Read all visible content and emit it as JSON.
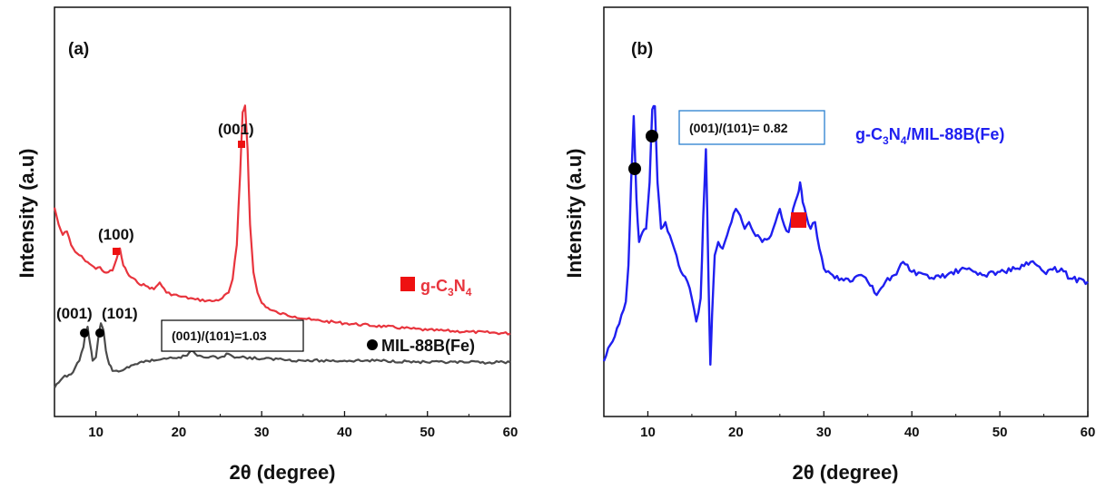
{
  "colors": {
    "gcn": "#e8343d",
    "mil": "#4a4a4a",
    "composite": "#1f1ff0",
    "square_marker": "#ee1111",
    "circle_marker": "#000000",
    "box_a_border": "#000000",
    "box_b_border": "#2a7fd0"
  },
  "chart_data": [
    {
      "type": "line",
      "panel_label": "(a)",
      "xlabel": "2θ (degree)",
      "ylabel": "Intensity (a.u)",
      "xlim": [
        5,
        60
      ],
      "xticks": [
        10,
        20,
        30,
        40,
        50,
        60
      ],
      "y_tick_labels": "none",
      "grid": false,
      "series": [
        {
          "name": "g-C3N4",
          "legend_marker": "square",
          "legend_base": "g-C",
          "legend_sub1": "3",
          "legend_mid": "N",
          "legend_sub2": "4",
          "x": [
            5,
            5.5,
            6,
            6.5,
            7,
            7.5,
            8,
            8.5,
            9,
            9.5,
            10,
            10.5,
            11,
            11.5,
            12,
            12.5,
            12.9,
            13.3,
            14,
            15,
            16,
            17,
            17.7,
            18.5,
            20,
            22,
            24,
            25,
            26,
            26.5,
            27,
            27.4,
            27.7,
            28,
            28.3,
            28.6,
            29,
            29.5,
            30,
            31,
            32,
            34,
            36,
            40,
            45,
            50,
            55,
            60
          ],
          "y": [
            0.55,
            0.5,
            0.47,
            0.48,
            0.44,
            0.42,
            0.41,
            0.4,
            0.39,
            0.38,
            0.37,
            0.375,
            0.36,
            0.36,
            0.365,
            0.4,
            0.43,
            0.38,
            0.35,
            0.33,
            0.32,
            0.31,
            0.33,
            0.3,
            0.29,
            0.28,
            0.275,
            0.28,
            0.3,
            0.34,
            0.44,
            0.65,
            0.83,
            0.85,
            0.72,
            0.5,
            0.36,
            0.3,
            0.27,
            0.25,
            0.24,
            0.23,
            0.22,
            0.21,
            0.2,
            0.19,
            0.185,
            0.18
          ]
        },
        {
          "name": "MIL-88B(Fe)",
          "legend_marker": "circle",
          "x": [
            5,
            6,
            7,
            7.5,
            8,
            8.5,
            8.8,
            9,
            9.3,
            9.6,
            10,
            10.3,
            10.6,
            10.9,
            11.2,
            11.6,
            12,
            13,
            14,
            15,
            16,
            17,
            18,
            19,
            20,
            21,
            21.5,
            22,
            23,
            25,
            26,
            27,
            28,
            30,
            32,
            35,
            40,
            45,
            50,
            55,
            60
          ],
          "y": [
            0.02,
            0.05,
            0.06,
            0.08,
            0.1,
            0.14,
            0.19,
            0.2,
            0.15,
            0.1,
            0.11,
            0.17,
            0.21,
            0.19,
            0.13,
            0.09,
            0.07,
            0.07,
            0.08,
            0.09,
            0.1,
            0.1,
            0.105,
            0.11,
            0.11,
            0.115,
            0.13,
            0.12,
            0.11,
            0.11,
            0.12,
            0.11,
            0.11,
            0.105,
            0.105,
            0.1,
            0.1,
            0.1,
            0.095,
            0.095,
            0.095
          ]
        }
      ],
      "annotations": [
        {
          "text": "(001)",
          "near": "27.9"
        },
        {
          "text": "(100)",
          "near": "12.9"
        },
        {
          "text": "(001)",
          "near": "9.0"
        },
        {
          "text": "(101)",
          "near": "10.7"
        }
      ],
      "ratio_box": "(001)/(101)=1.03"
    },
    {
      "type": "line",
      "panel_label": "(b)",
      "xlabel": "2θ (degree)",
      "ylabel": "Intensity (a.u)",
      "xlim": [
        5,
        60
      ],
      "xticks": [
        10,
        20,
        30,
        40,
        50,
        60
      ],
      "y_tick_labels": "none",
      "grid": false,
      "series": [
        {
          "name": "g-C3N4/MIL-88B(Fe)",
          "legend_base": "g-C",
          "legend_sub1": "3",
          "legend_mid": "N",
          "legend_sub2": "4",
          "legend_end": "/MIL-88B(Fe)",
          "x": [
            5,
            5.5,
            6,
            6.5,
            7,
            7.5,
            7.8,
            8.1,
            8.4,
            8.7,
            9,
            9.4,
            9.8,
            10.2,
            10.5,
            10.8,
            11.1,
            11.5,
            12,
            12.5,
            13,
            13.5,
            14,
            14.5,
            15,
            15.5,
            16,
            16.3,
            16.6,
            16.9,
            17.1,
            17.3,
            17.6,
            18,
            18.5,
            19,
            19.5,
            20,
            20.5,
            21,
            21.5,
            22,
            23,
            24,
            24.5,
            25,
            25.5,
            26,
            26.5,
            27,
            27.3,
            27.6,
            28,
            28.5,
            29,
            29.5,
            30,
            31,
            32,
            33,
            34,
            35,
            36,
            37,
            38,
            39,
            40,
            42,
            44,
            46,
            48,
            50,
            52,
            53.5,
            55,
            57,
            58,
            60
          ],
          "y": [
            0.06,
            0.1,
            0.12,
            0.16,
            0.2,
            0.24,
            0.35,
            0.6,
            0.8,
            0.55,
            0.42,
            0.45,
            0.46,
            0.6,
            0.82,
            0.83,
            0.6,
            0.46,
            0.48,
            0.44,
            0.4,
            0.35,
            0.32,
            0.3,
            0.25,
            0.18,
            0.25,
            0.5,
            0.7,
            0.3,
            0.05,
            0.2,
            0.38,
            0.42,
            0.4,
            0.44,
            0.48,
            0.52,
            0.5,
            0.46,
            0.48,
            0.45,
            0.42,
            0.44,
            0.48,
            0.52,
            0.47,
            0.45,
            0.52,
            0.56,
            0.6,
            0.54,
            0.5,
            0.46,
            0.48,
            0.4,
            0.34,
            0.32,
            0.31,
            0.3,
            0.32,
            0.3,
            0.26,
            0.3,
            0.32,
            0.36,
            0.33,
            0.31,
            0.32,
            0.34,
            0.32,
            0.33,
            0.34,
            0.36,
            0.33,
            0.34,
            0.31,
            0.3
          ]
        }
      ],
      "ratio_box": "(001)/(101)= 0.82"
    }
  ]
}
